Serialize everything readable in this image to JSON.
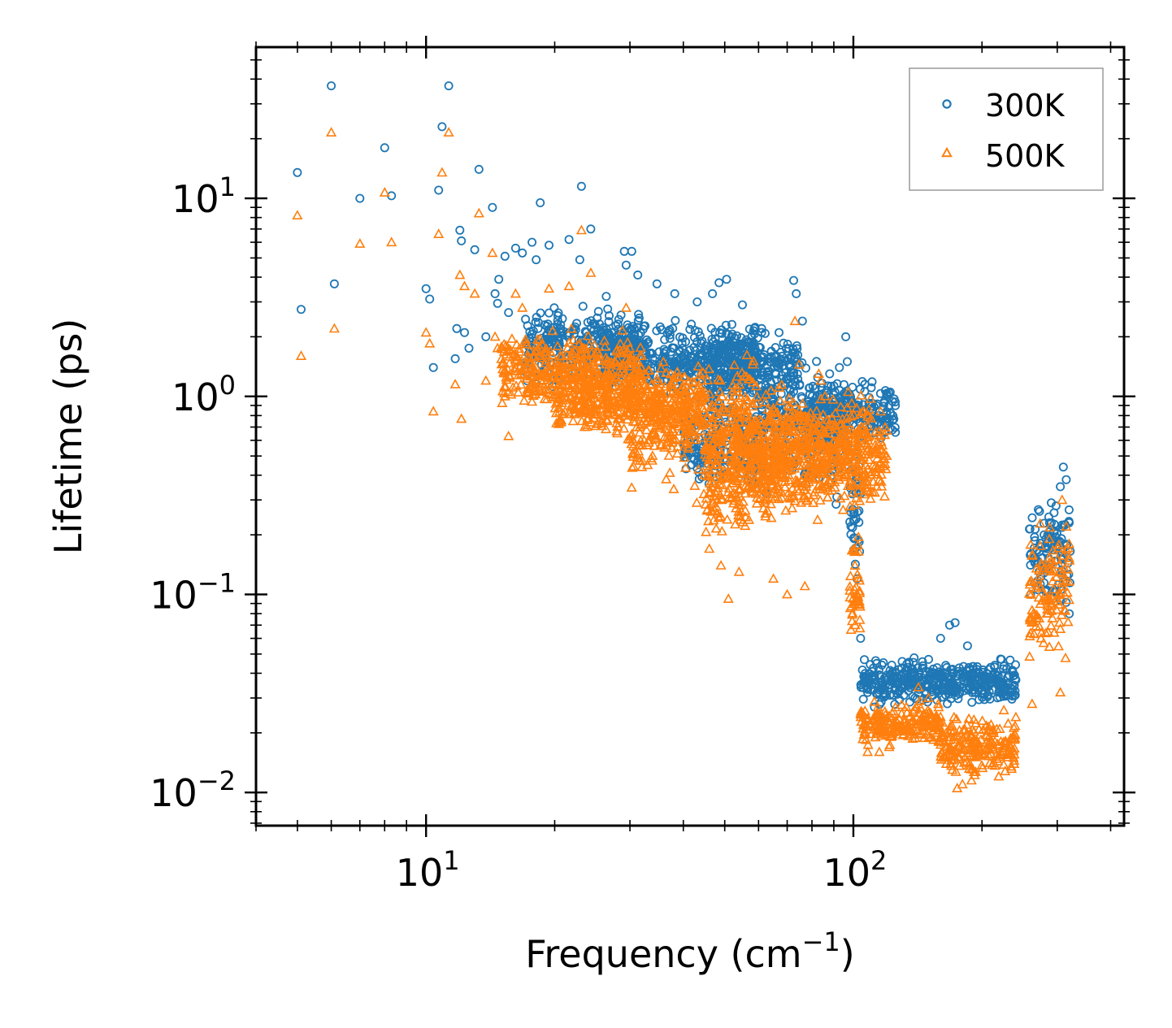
{
  "chart_data": {
    "type": "scatter",
    "xscale": "log",
    "yscale": "log",
    "xlim": [
      4,
      430
    ],
    "ylim": [
      0.0068,
      58
    ],
    "xlabel": {
      "text": "Frequency (cm",
      "sup": "−1",
      "suffix": ")"
    },
    "ylabel": "Lifetime (ps)",
    "x_ticks": [
      {
        "value": 10,
        "base": "10",
        "exp": "1"
      },
      {
        "value": 100,
        "base": "10",
        "exp": "2"
      }
    ],
    "y_ticks": [
      {
        "value": 0.01,
        "base": "10",
        "exp": "−2"
      },
      {
        "value": 0.1,
        "base": "10",
        "exp": "−1"
      },
      {
        "value": 1,
        "base": "10",
        "exp": "0"
      },
      {
        "value": 10,
        "base": "10",
        "exp": "1"
      }
    ],
    "legend": {
      "position": "top-right"
    },
    "series": [
      {
        "name": "300K",
        "marker": "circle",
        "color": "#1f77b4",
        "points": [
          [
            5.0,
            13.5
          ],
          [
            5.1,
            2.75
          ],
          [
            6.0,
            37
          ],
          [
            6.1,
            3.7
          ],
          [
            7.0,
            10
          ],
          [
            8.0,
            18
          ],
          [
            8.3,
            10.3
          ],
          [
            10.0,
            3.5
          ],
          [
            10.2,
            3.1
          ],
          [
            10.4,
            1.4
          ],
          [
            10.7,
            11
          ],
          [
            10.9,
            23
          ],
          [
            11.3,
            37
          ],
          [
            11.7,
            1.55
          ],
          [
            11.8,
            2.2
          ],
          [
            12.0,
            6.9
          ],
          [
            12.1,
            6.1
          ],
          [
            12.3,
            2.1
          ],
          [
            12.6,
            1.75
          ],
          [
            13.0,
            5.5
          ],
          [
            13.3,
            14
          ],
          [
            13.8,
            2.0
          ],
          [
            14.3,
            9
          ],
          [
            14.5,
            3.3
          ],
          [
            14.7,
            2.95
          ],
          [
            14.8,
            3.9
          ],
          [
            15.3,
            5.1
          ],
          [
            15.6,
            2.65
          ],
          [
            16.2,
            5.6
          ],
          [
            16.8,
            5.3
          ],
          [
            17.7,
            6.0
          ],
          [
            18.1,
            4.9
          ],
          [
            18.5,
            9.5
          ],
          [
            19.4,
            5.8
          ],
          [
            20.6,
            2.2
          ],
          [
            21.6,
            6.2
          ],
          [
            22.9,
            4.9
          ],
          [
            23.1,
            11.5
          ],
          [
            24.3,
            7.0
          ],
          [
            26.4,
            3.2
          ],
          [
            29.1,
            5.4
          ],
          [
            29.4,
            4.6
          ],
          [
            30.3,
            5.4
          ],
          [
            31.3,
            4.1
          ],
          [
            34.7,
            3.7
          ],
          [
            38.2,
            3.3
          ],
          [
            43.1,
            3.0
          ],
          [
            46.8,
            3.3
          ],
          [
            48.5,
            3.75
          ],
          [
            50.5,
            3.9
          ],
          [
            55.0,
            2.9
          ],
          [
            61.0,
            2.2
          ],
          [
            67.0,
            2.1
          ],
          [
            72.5,
            3.85
          ],
          [
            73.5,
            3.3
          ],
          [
            76.0,
            2.4
          ],
          [
            82.0,
            1.5
          ],
          [
            88.0,
            1.3
          ],
          [
            96.0,
            2.0
          ],
          [
            105.0,
            0.85
          ],
          [
            113.0,
            0.9
          ],
          [
            120.0,
            0.75
          ],
          [
            102.0,
            0.12
          ],
          [
            104.0,
            0.06
          ],
          [
            108.0,
            0.032
          ],
          [
            112.0,
            0.027
          ],
          [
            122.0,
            0.035
          ],
          [
            135.0,
            0.045
          ],
          [
            150.0,
            0.047
          ],
          [
            160.0,
            0.06
          ],
          [
            168.0,
            0.07
          ],
          [
            173.0,
            0.072
          ],
          [
            185.0,
            0.055
          ],
          [
            190.0,
            0.04
          ],
          [
            205.0,
            0.038
          ],
          [
            222.0,
            0.047
          ],
          [
            240.0,
            0.037
          ],
          [
            260.0,
            0.1
          ],
          [
            272.0,
            0.13
          ],
          [
            285.0,
            0.2
          ],
          [
            298.0,
            0.28
          ],
          [
            305.0,
            0.35
          ],
          [
            310.0,
            0.44
          ],
          [
            315.0,
            0.38
          ],
          [
            320.0,
            0.23
          ]
        ],
        "bands": [
          {
            "x": [
              17,
              32
            ],
            "y": [
              1.0,
              3.2
            ]
          },
          {
            "x": [
              26,
              60
            ],
            "y": [
              0.9,
              2.6
            ]
          },
          {
            "x": [
              45,
              75
            ],
            "y": [
              0.8,
              2.4
            ]
          },
          {
            "x": [
              40,
              62
            ],
            "y": [
              0.28,
              1.2
            ]
          },
          {
            "x": [
              60,
              98
            ],
            "y": [
              0.25,
              1.8
            ]
          },
          {
            "x": [
              78,
              126
            ],
            "y": [
              0.55,
              1.3
            ]
          },
          {
            "x": [
              98,
              104
            ],
            "y": [
              0.1,
              0.9
            ]
          },
          {
            "x": [
              104,
              240
            ],
            "y": [
              0.026,
              0.05
            ]
          },
          {
            "x": [
              258,
              322
            ],
            "y": [
              0.06,
              0.42
            ]
          }
        ]
      },
      {
        "name": "500K",
        "marker": "triangle",
        "color": "#ff7f0e",
        "points": [
          [
            5.0,
            8.2
          ],
          [
            5.1,
            1.6
          ],
          [
            6.0,
            21.5
          ],
          [
            6.1,
            2.2
          ],
          [
            7.0,
            5.9
          ],
          [
            8.0,
            10.7
          ],
          [
            8.3,
            6.0
          ],
          [
            10.0,
            2.1
          ],
          [
            10.2,
            1.85
          ],
          [
            10.4,
            0.84
          ],
          [
            10.7,
            6.6
          ],
          [
            10.9,
            13.5
          ],
          [
            11.3,
            21.5
          ],
          [
            11.7,
            1.15
          ],
          [
            12.0,
            4.1
          ],
          [
            12.1,
            0.77
          ],
          [
            12.3,
            3.6
          ],
          [
            13.0,
            3.3
          ],
          [
            13.3,
            8.4
          ],
          [
            13.8,
            1.2
          ],
          [
            14.3,
            5.3
          ],
          [
            14.5,
            2.0
          ],
          [
            14.7,
            1.75
          ],
          [
            15.3,
            1.0
          ],
          [
            15.6,
            0.63
          ],
          [
            16.2,
            3.3
          ],
          [
            16.8,
            2.8
          ],
          [
            17.7,
            0.94
          ],
          [
            18.5,
            1.6
          ],
          [
            19.4,
            3.5
          ],
          [
            20.6,
            1.6
          ],
          [
            21.6,
            3.6
          ],
          [
            23.1,
            6.9
          ],
          [
            24.3,
            4.2
          ],
          [
            29.4,
            2.8
          ],
          [
            33.0,
            0.45
          ],
          [
            38.0,
            0.34
          ],
          [
            43.0,
            0.29
          ],
          [
            46.0,
            0.17
          ],
          [
            49.0,
            0.14
          ],
          [
            51.0,
            0.095
          ],
          [
            54.0,
            0.13
          ],
          [
            65.0,
            0.12
          ],
          [
            70.0,
            0.1
          ],
          [
            73.0,
            2.4
          ],
          [
            77.0,
            0.11
          ],
          [
            83.0,
            1.3
          ],
          [
            96.0,
            0.5
          ],
          [
            101.0,
            0.07
          ],
          [
            104.0,
            0.025
          ],
          [
            108.0,
            0.016
          ],
          [
            115.0,
            0.016
          ],
          [
            126.0,
            0.023
          ],
          [
            133.0,
            0.027
          ],
          [
            142.0,
            0.034
          ],
          [
            150.0,
            0.03
          ],
          [
            158.0,
            0.028
          ],
          [
            168.0,
            0.019
          ],
          [
            175.0,
            0.0105
          ],
          [
            180.0,
            0.011
          ],
          [
            195.0,
            0.017
          ],
          [
            210.0,
            0.022
          ],
          [
            225.0,
            0.026
          ],
          [
            240.0,
            0.024
          ],
          [
            262.0,
            0.028
          ],
          [
            275.0,
            0.06
          ],
          [
            285.0,
            0.08
          ],
          [
            300.0,
            0.15
          ],
          [
            308.0,
            0.3
          ],
          [
            315.0,
            0.22
          ],
          [
            320.0,
            0.18
          ],
          [
            305.0,
            0.032
          ]
        ],
        "bands": [
          {
            "x": [
              15,
              32
            ],
            "y": [
              0.75,
              2.4
            ]
          },
          {
            "x": [
              20,
              45
            ],
            "y": [
              0.55,
              1.6
            ]
          },
          {
            "x": [
              30,
              60
            ],
            "y": [
              0.3,
              1.8
            ]
          },
          {
            "x": [
              45,
              68
            ],
            "y": [
              0.16,
              0.9
            ]
          },
          {
            "x": [
              52,
              110
            ],
            "y": [
              0.2,
              1.5
            ]
          },
          {
            "x": [
              60,
              120
            ],
            "y": [
              0.25,
              1.1
            ]
          },
          {
            "x": [
              98,
              104
            ],
            "y": [
              0.04,
              0.3
            ]
          },
          {
            "x": [
              104,
              160
            ],
            "y": [
              0.016,
              0.03
            ]
          },
          {
            "x": [
              160,
              240
            ],
            "y": [
              0.011,
              0.026
            ]
          },
          {
            "x": [
              258,
              322
            ],
            "y": [
              0.035,
              0.28
            ]
          }
        ]
      }
    ]
  }
}
